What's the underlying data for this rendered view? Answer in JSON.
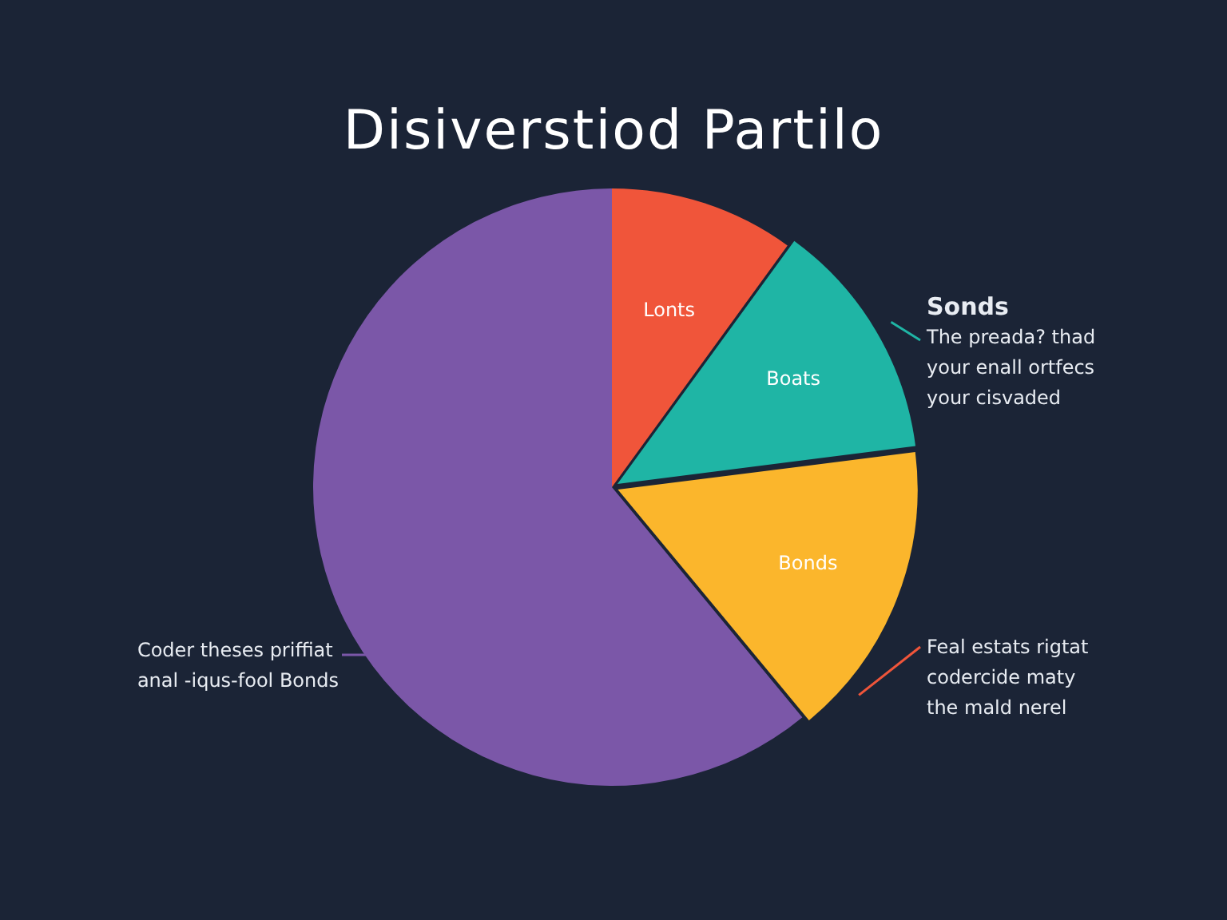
{
  "chart_data": {
    "type": "pie",
    "title": "Disiverstiod Partilo",
    "categories": [
      "Lonts",
      "Boats",
      "Bonds",
      null
    ],
    "values": [
      10,
      13,
      16,
      61
    ],
    "colors": [
      "#f0553a",
      "#1fb5a5",
      "#fbb62c",
      "#7b57a8"
    ],
    "legend": false,
    "annotations": [
      "Sonds\nThe preada? thad\nyour enall ortfecs\nyour cisvaded",
      "Feal estats rigtat\ncodercide maty\nthe mald nerel",
      "Coder theses priffiat\nanal -iqus-fool Bonds"
    ]
  }
}
